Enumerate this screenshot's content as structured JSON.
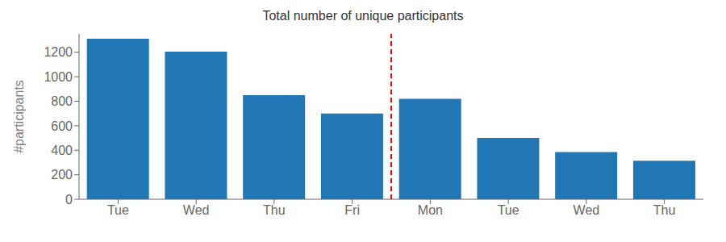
{
  "chart_data": {
    "type": "bar",
    "title": "Total number of unique participants",
    "ylabel": "#participants",
    "categories": [
      "Tue",
      "Wed",
      "Thu",
      "Fri",
      "Mon",
      "Tue",
      "Wed",
      "Thu"
    ],
    "values": [
      1310,
      1205,
      850,
      700,
      820,
      500,
      385,
      315
    ],
    "color": "#2077b4",
    "ylim": [
      0,
      1350
    ],
    "yticks": [
      0,
      200,
      400,
      600,
      800,
      1000,
      1200
    ],
    "grid": false,
    "vline": {
      "x": 3.5,
      "color": "red",
      "line_style": "dashed"
    }
  }
}
